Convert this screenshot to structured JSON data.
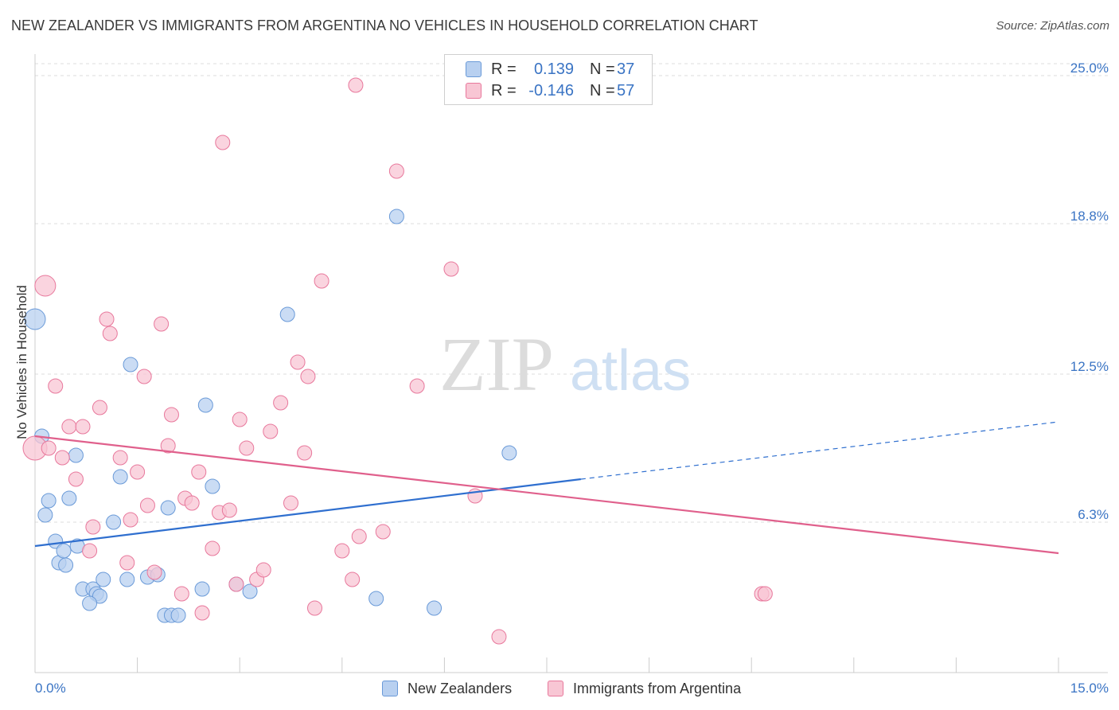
{
  "header": {
    "title": "NEW ZEALANDER VS IMMIGRANTS FROM ARGENTINA NO VEHICLES IN HOUSEHOLD CORRELATION CHART",
    "source": "Source: ZipAtlas.com"
  },
  "watermark": {
    "zip": "ZIP",
    "atlas": "atlas"
  },
  "stats_legend": {
    "rows": [
      {
        "r_label": "R =",
        "r_value": "0.139",
        "n_label": "N =",
        "n_value": "37",
        "color": "#b8d0f0"
      },
      {
        "r_label": "R =",
        "r_value": "-0.146",
        "n_label": "N =",
        "n_value": "57",
        "color": "#f8c6d4"
      }
    ]
  },
  "bottom_legend": {
    "items": [
      {
        "label": "New Zealanders",
        "color": "#b8d0f0"
      },
      {
        "label": "Immigrants from Argentina",
        "color": "#f8c6d4"
      }
    ]
  },
  "chart_data": {
    "type": "scatter",
    "title": "NEW ZEALANDER VS IMMIGRANTS FROM ARGENTINA NO VEHICLES IN HOUSEHOLD CORRELATION CHART",
    "xlabel": "",
    "ylabel": "No Vehicles in Household",
    "xlim": [
      0,
      15
    ],
    "ylim": [
      0,
      25.5
    ],
    "x_tick_labels": [
      "0.0%",
      "15.0%"
    ],
    "y_ticks": [
      6.3,
      12.5,
      18.8,
      25.0
    ],
    "y_tick_labels": [
      "6.3%",
      "12.5%",
      "18.8%",
      "25.0%"
    ],
    "grid": "horizontal dashed",
    "legend_position": "top-center and bottom",
    "series": [
      {
        "name": "New Zealanders",
        "color": "#6a9ad8",
        "fill": "#b8d0f0",
        "r": 0.139,
        "n": 37,
        "trend": {
          "x0": 0,
          "y0": 5.3,
          "x1": 8.0,
          "y1": 8.1,
          "dashed_to_x": 15.0,
          "dashed_to_y": 10.5,
          "color": "#2f6fcf"
        },
        "points": [
          [
            0.0,
            14.8,
            13
          ],
          [
            0.1,
            9.9,
            9
          ],
          [
            0.2,
            7.2,
            9
          ],
          [
            0.15,
            6.6,
            9
          ],
          [
            0.3,
            5.5,
            9
          ],
          [
            0.35,
            4.6,
            9
          ],
          [
            0.5,
            7.3,
            9
          ],
          [
            0.42,
            5.1,
            9
          ],
          [
            0.45,
            4.5,
            9
          ],
          [
            0.6,
            9.1,
            9
          ],
          [
            0.62,
            5.3,
            9
          ],
          [
            0.7,
            3.5,
            9
          ],
          [
            0.85,
            3.5,
            9
          ],
          [
            0.9,
            3.3,
            9
          ],
          [
            0.95,
            3.2,
            9
          ],
          [
            0.8,
            2.9,
            9
          ],
          [
            1.0,
            3.9,
            9
          ],
          [
            1.15,
            6.3,
            9
          ],
          [
            1.25,
            8.2,
            9
          ],
          [
            1.35,
            3.9,
            9
          ],
          [
            1.4,
            12.9,
            9
          ],
          [
            1.65,
            4.0,
            9
          ],
          [
            1.8,
            4.1,
            9
          ],
          [
            1.95,
            6.9,
            9
          ],
          [
            1.9,
            2.4,
            9
          ],
          [
            2.0,
            2.4,
            9
          ],
          [
            2.1,
            2.4,
            9
          ],
          [
            2.45,
            3.5,
            9
          ],
          [
            2.5,
            11.2,
            9
          ],
          [
            2.6,
            7.8,
            9
          ],
          [
            2.95,
            3.7,
            9
          ],
          [
            3.15,
            3.4,
            9
          ],
          [
            3.7,
            15.0,
            9
          ],
          [
            5.0,
            3.1,
            9
          ],
          [
            5.3,
            19.1,
            9
          ],
          [
            5.85,
            2.7,
            9
          ],
          [
            6.95,
            9.2,
            9
          ]
        ]
      },
      {
        "name": "Immigrants from Argentina",
        "color": "#e8789c",
        "fill": "#f8c6d4",
        "r": -0.146,
        "n": 57,
        "trend": {
          "x0": 0,
          "y0": 9.9,
          "x1": 15.0,
          "y1": 5.0,
          "color": "#e0608c"
        },
        "points": [
          [
            0.0,
            9.4,
            15
          ],
          [
            0.15,
            16.2,
            13
          ],
          [
            0.2,
            9.4,
            9
          ],
          [
            0.3,
            12.0,
            9
          ],
          [
            0.4,
            9.0,
            9
          ],
          [
            0.5,
            10.3,
            9
          ],
          [
            0.6,
            8.1,
            9
          ],
          [
            0.7,
            10.3,
            9
          ],
          [
            0.8,
            5.1,
            9
          ],
          [
            0.85,
            6.1,
            9
          ],
          [
            0.95,
            11.1,
            9
          ],
          [
            1.05,
            14.8,
            9
          ],
          [
            1.1,
            14.2,
            9
          ],
          [
            1.25,
            9.0,
            9
          ],
          [
            1.35,
            4.6,
            9
          ],
          [
            1.4,
            6.4,
            9
          ],
          [
            1.5,
            8.4,
            9
          ],
          [
            1.6,
            12.4,
            9
          ],
          [
            1.65,
            7.0,
            9
          ],
          [
            1.75,
            4.2,
            9
          ],
          [
            1.85,
            14.6,
            9
          ],
          [
            1.95,
            9.5,
            9
          ],
          [
            2.0,
            10.8,
            9
          ],
          [
            2.15,
            3.3,
            9
          ],
          [
            2.2,
            7.3,
            9
          ],
          [
            2.3,
            7.1,
            9
          ],
          [
            2.4,
            8.4,
            9
          ],
          [
            2.45,
            2.5,
            9
          ],
          [
            2.6,
            5.2,
            9
          ],
          [
            2.7,
            6.7,
            9
          ],
          [
            2.75,
            22.2,
            9
          ],
          [
            2.85,
            6.8,
            9
          ],
          [
            2.95,
            3.7,
            9
          ],
          [
            3.0,
            10.6,
            9
          ],
          [
            3.1,
            9.4,
            9
          ],
          [
            3.25,
            3.9,
            9
          ],
          [
            3.35,
            4.3,
            9
          ],
          [
            3.45,
            10.1,
            9
          ],
          [
            3.6,
            11.3,
            9
          ],
          [
            3.75,
            7.1,
            9
          ],
          [
            3.85,
            13.0,
            9
          ],
          [
            3.95,
            9.2,
            9
          ],
          [
            4.0,
            12.4,
            9
          ],
          [
            4.1,
            2.7,
            9
          ],
          [
            4.2,
            16.4,
            9
          ],
          [
            4.5,
            5.1,
            9
          ],
          [
            4.65,
            3.9,
            9
          ],
          [
            4.7,
            24.6,
            9
          ],
          [
            4.75,
            5.7,
            9
          ],
          [
            5.1,
            5.9,
            9
          ],
          [
            5.3,
            21.0,
            9
          ],
          [
            5.6,
            12.0,
            9
          ],
          [
            6.1,
            16.9,
            9
          ],
          [
            6.45,
            7.4,
            9
          ],
          [
            6.8,
            1.5,
            9
          ],
          [
            10.65,
            3.3,
            9
          ],
          [
            10.7,
            3.3,
            9
          ]
        ]
      }
    ]
  }
}
